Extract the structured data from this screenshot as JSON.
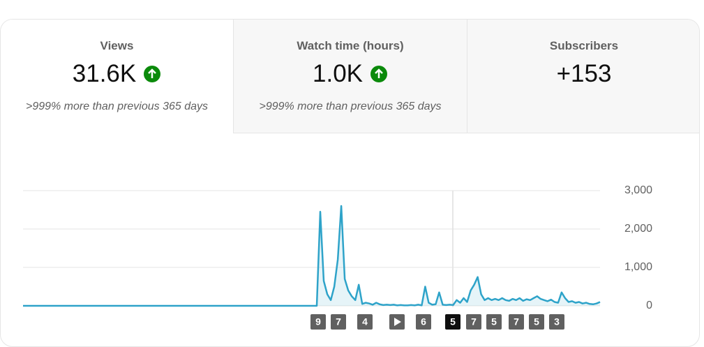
{
  "tabs": [
    {
      "label": "Views",
      "value": "31.6K",
      "comparison": ">999% more than previous 365 days"
    },
    {
      "label": "Watch time (hours)",
      "value": "1.0K",
      "comparison": ">999% more than previous 365 days"
    },
    {
      "label": "Subscribers",
      "value": "+153"
    }
  ],
  "chart_data": {
    "type": "line",
    "color": "#2ea3c9",
    "values": [
      0,
      0,
      0,
      0,
      0,
      0,
      0,
      0,
      0,
      0,
      0,
      0,
      0,
      0,
      0,
      0,
      0,
      0,
      0,
      0,
      0,
      0,
      0,
      0,
      0,
      0,
      0,
      0,
      0,
      0,
      0,
      0,
      0,
      0,
      0,
      0,
      0,
      0,
      0,
      0,
      0,
      0,
      0,
      0,
      0,
      0,
      0,
      0,
      0,
      0,
      0,
      0,
      0,
      0,
      0,
      0,
      0,
      0,
      0,
      0,
      0,
      0,
      0,
      0,
      0,
      0,
      0,
      0,
      0,
      0,
      0,
      0,
      0,
      0,
      0,
      0,
      0,
      0,
      0,
      0,
      0,
      0,
      0,
      0,
      0,
      2450,
      650,
      300,
      150,
      500,
      1200,
      2600,
      700,
      400,
      250,
      150,
      550,
      50,
      80,
      60,
      30,
      80,
      40,
      20,
      30,
      20,
      30,
      10,
      20,
      10,
      10,
      20,
      10,
      30,
      10,
      500,
      80,
      30,
      40,
      350,
      30,
      20,
      30,
      20,
      150,
      80,
      200,
      100,
      400,
      550,
      750,
      300,
      150,
      200,
      150,
      180,
      150,
      200,
      150,
      130,
      180,
      150,
      200,
      130,
      170,
      150,
      200,
      250,
      180,
      150,
      120,
      160,
      100,
      80,
      350,
      200,
      100,
      120,
      80,
      100,
      60,
      80,
      50,
      40,
      60,
      100
    ],
    "ylim": [
      0,
      3000
    ],
    "yticks": [
      0,
      {
        "value": 1000,
        "label": "1,000"
      },
      {
        "value": 2000,
        "label": "2,000"
      },
      {
        "value": 3000,
        "label": "3,000"
      }
    ],
    "grid": true,
    "markers": [
      "9",
      "7",
      "4",
      "6",
      "5",
      "7",
      "5",
      "7",
      "5",
      "3"
    ]
  }
}
